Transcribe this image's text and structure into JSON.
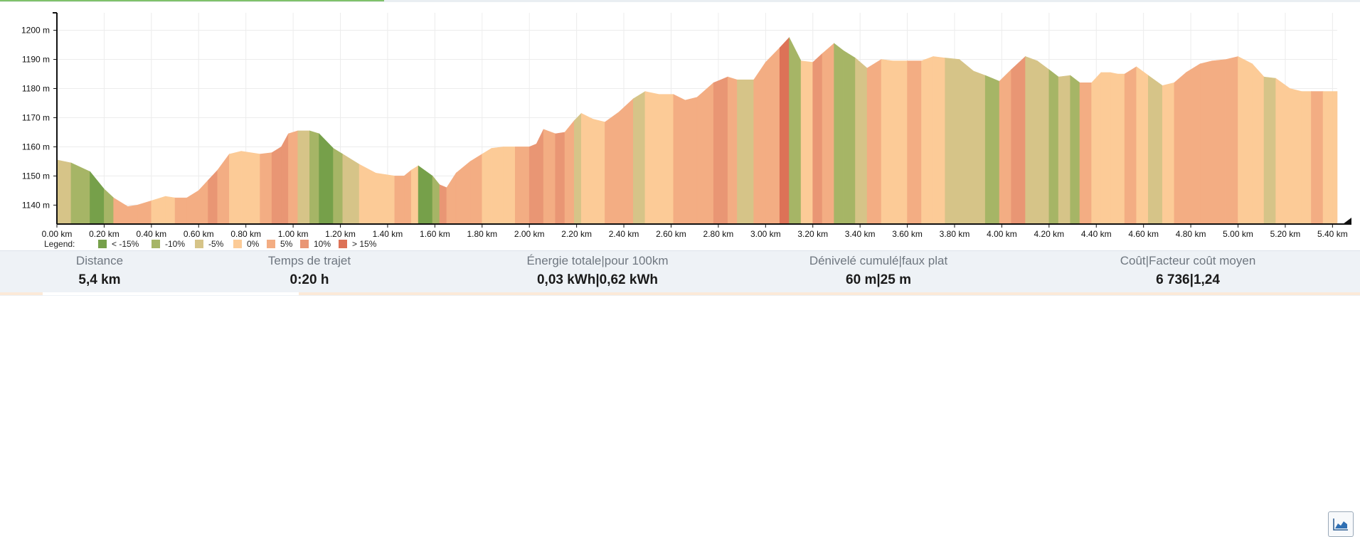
{
  "chart_data": {
    "type": "area",
    "xlabel": "",
    "ylabel": "",
    "x_unit": "km",
    "y_unit": "m",
    "xlim": [
      0,
      5.42
    ],
    "ylim": [
      1133.5,
      1206
    ],
    "x_ticks": [
      "0.00 km",
      "0.20 km",
      "0.40 km",
      "0.60 km",
      "0.80 km",
      "1.00 km",
      "1.20 km",
      "1.40 km",
      "1.60 km",
      "1.80 km",
      "2.00 km",
      "2.20 km",
      "2.40 km",
      "2.60 km",
      "2.80 km",
      "3.00 km",
      "3.20 km",
      "3.40 km",
      "3.60 km",
      "3.80 km",
      "4.00 km",
      "4.20 km",
      "4.40 km",
      "4.60 km",
      "4.80 km",
      "5.00 km",
      "5.20 km",
      "5.40 km"
    ],
    "y_ticks": [
      "1140 m",
      "1150 m",
      "1160 m",
      "1170 m",
      "1180 m",
      "1190 m",
      "1200 m"
    ],
    "grid": true,
    "legend_position": "bottom-left",
    "profile": {
      "x": [
        0.0,
        0.06,
        0.14,
        0.2,
        0.24,
        0.3,
        0.34,
        0.4,
        0.46,
        0.5,
        0.55,
        0.6,
        0.64,
        0.68,
        0.73,
        0.78,
        0.86,
        0.91,
        0.95,
        0.98,
        1.02,
        1.07,
        1.11,
        1.17,
        1.21,
        1.28,
        1.35,
        1.43,
        1.47,
        1.5,
        1.53,
        1.59,
        1.62,
        1.65,
        1.69,
        1.75,
        1.8,
        1.84,
        1.89,
        1.94,
        2.0,
        2.03,
        2.06,
        2.11,
        2.15,
        2.19,
        2.22,
        2.27,
        2.32,
        2.38,
        2.44,
        2.49,
        2.55,
        2.61,
        2.66,
        2.71,
        2.78,
        2.84,
        2.88,
        2.95,
        3.0,
        3.06,
        3.1,
        3.15,
        3.2,
        3.24,
        3.29,
        3.33,
        3.38,
        3.43,
        3.49,
        3.54,
        3.6,
        3.66,
        3.71,
        3.76,
        3.82,
        3.88,
        3.93,
        3.99,
        4.04,
        4.1,
        4.15,
        4.2,
        4.24,
        4.29,
        4.33,
        4.38,
        4.42,
        4.46,
        4.49,
        4.52,
        4.57,
        4.62,
        4.68,
        4.73,
        4.78,
        4.84,
        4.89,
        4.95,
        5.0,
        5.06,
        5.11,
        5.16,
        5.22,
        5.27,
        5.31,
        5.36,
        5.4,
        5.42
      ],
      "elevation": [
        1155.5,
        1154.5,
        1151.5,
        1145.5,
        1142.5,
        1139.5,
        1140.0,
        1141.5,
        1143.0,
        1142.5,
        1142.5,
        1145.0,
        1148.5,
        1152.0,
        1157.5,
        1158.5,
        1157.5,
        1158.0,
        1160.0,
        1164.5,
        1165.5,
        1165.5,
        1164.5,
        1159.5,
        1157.5,
        1154.0,
        1151.0,
        1150.0,
        1150.0,
        1152.0,
        1153.5,
        1150.0,
        1147.0,
        1146.0,
        1151.0,
        1155.0,
        1157.5,
        1159.5,
        1160.0,
        1160.0,
        1160.0,
        1161.0,
        1166.0,
        1164.5,
        1165.0,
        1169.0,
        1171.5,
        1169.5,
        1168.5,
        1172.0,
        1176.5,
        1179.0,
        1178.0,
        1178.0,
        1176.0,
        1177.0,
        1182.0,
        1184.0,
        1183.0,
        1183.0,
        1189.0,
        1194.0,
        1197.5,
        1189.5,
        1189.0,
        1192.0,
        1195.5,
        1193.0,
        1190.5,
        1187.0,
        1190.0,
        1189.5,
        1189.5,
        1189.5,
        1191.0,
        1190.5,
        1190.0,
        1186.0,
        1184.5,
        1182.5,
        1186.5,
        1191.0,
        1189.5,
        1186.5,
        1184.0,
        1184.5,
        1182.0,
        1182.0,
        1185.5,
        1185.5,
        1185.0,
        1185.0,
        1187.5,
        1184.5,
        1181.0,
        1182.0,
        1185.5,
        1188.5,
        1189.5,
        1190.0,
        1191.0,
        1188.5,
        1184.0,
        1183.5,
        1180.0,
        1179.0,
        1179.0,
        1179.0,
        1179.0,
        1179.0
      ],
      "grade_class": [
        2,
        1,
        0,
        1,
        4,
        4,
        4,
        3,
        3,
        4,
        4,
        4,
        5,
        4,
        3,
        3,
        4,
        5,
        5,
        4,
        2,
        1,
        0,
        1,
        2,
        3,
        3,
        4,
        4,
        3,
        0,
        1,
        5,
        4,
        4,
        4,
        3,
        3,
        3,
        4,
        5,
        5,
        4,
        5,
        4,
        2,
        3,
        3,
        4,
        4,
        2,
        3,
        3,
        4,
        4,
        4,
        5,
        4,
        2,
        4,
        4,
        6,
        1,
        3,
        5,
        4,
        1,
        1,
        2,
        4,
        3,
        3,
        4,
        3,
        3,
        2,
        2,
        2,
        1,
        4,
        5,
        2,
        2,
        1,
        2,
        1,
        4,
        3,
        3,
        3,
        3,
        4,
        3,
        2,
        3,
        4,
        4,
        4,
        4,
        4,
        3,
        3,
        2,
        3,
        3,
        3,
        4,
        3,
        3
      ]
    },
    "legend": {
      "title": "Legend:",
      "items": [
        {
          "label": "< -15%",
          "color": "#76a04a"
        },
        {
          "label": "-10%",
          "color": "#a6b566"
        },
        {
          "label": "-5%",
          "color": "#d6c488"
        },
        {
          "label": "0%",
          "color": "#fccb97"
        },
        {
          "label": "5%",
          "color": "#f3ad83"
        },
        {
          "label": "10%",
          "color": "#e99674"
        },
        {
          "label": "> 15%",
          "color": "#dd7257"
        }
      ]
    }
  },
  "summary": {
    "distance": {
      "label": "Distance",
      "value": "5,4 km"
    },
    "time": {
      "label": "Temps de trajet",
      "value": "0:20 h"
    },
    "energy": {
      "label": "Énergie totale|pour 100km",
      "value": "0,03 kWh|0,62 kWh"
    },
    "elevation": {
      "label": "Dénivelé cumulé|faux plat",
      "value": "60 m|25 m"
    },
    "cost": {
      "label": "Coût|Facteur coût moyen",
      "value": "6 736|1,24"
    }
  },
  "controls": {
    "graph_icon": "area-chart-icon"
  }
}
